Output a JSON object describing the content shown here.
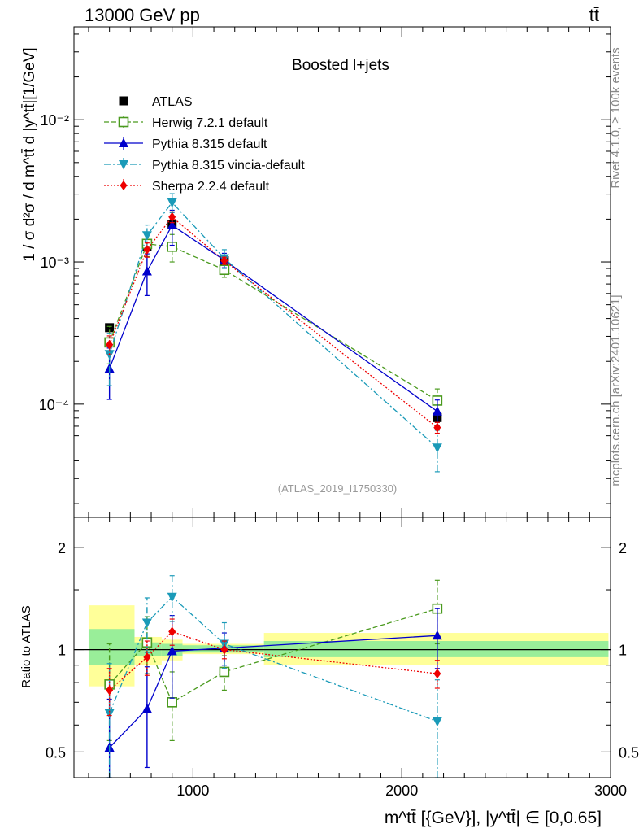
{
  "header": {
    "left": "13000 GeV pp",
    "right": "tt̄"
  },
  "side_labels": {
    "rivet": "Rivet 4.1.0, ≥ 100k events",
    "mcplots": "mcplots.cern.ch [arXiv:2401.10621]"
  },
  "colors": {
    "ATLAS": "#000000",
    "Herwig": "#4a9a1e",
    "Pythia": "#0000cc",
    "Vincia": "#1a9ab8",
    "Sherpa": "#ee0000",
    "band_inner": "#99ee99",
    "band_outer": "#ffff99"
  },
  "chart_data": [
    {
      "type": "line",
      "panel": "main",
      "title": "Boosted l+jets",
      "ylabel": "1 / σ d²σ / d m^tt̄ d |y^tt̄|[1/GeV]",
      "yscale": "log",
      "xlim": [
        430,
        3000
      ],
      "ylim": [
        1.6e-05,
        0.045
      ],
      "ytick_labels": [
        "10⁻⁴",
        "10⁻³",
        "10⁻²"
      ],
      "watermark": "(ATLAS_2019_I1750330)",
      "x": [
        600,
        780,
        900,
        1150,
        2170
      ],
      "bin_edges": [
        [
          500,
          700
        ],
        [
          700,
          850
        ],
        [
          850,
          950
        ],
        [
          950,
          1350
        ],
        [
          1350,
          3000
        ]
      ],
      "series": [
        {
          "name": "ATLAS",
          "key": "ATLAS",
          "marker": "square",
          "dash": "",
          "values": [
            0.000345,
            0.00128,
            0.00183,
            0.00102,
            8.05e-05
          ],
          "errors": [
            2e-05,
            5e-05,
            6e-05,
            4e-05,
            6e-06
          ]
        },
        {
          "name": "Herwig 7.2.1 default",
          "key": "Herwig",
          "marker": "open-square",
          "dash": "6,3",
          "values": [
            0.000272,
            0.00134,
            0.00128,
            0.00088,
            0.000106
          ],
          "errors": [
            8e-05,
            0.00025,
            0.00028,
            0.0001,
            2.2e-05
          ]
        },
        {
          "name": "Pythia 8.315 default",
          "key": "Pythia",
          "marker": "triangle-up",
          "dash": "",
          "values": [
            0.000178,
            0.00086,
            0.00181,
            0.00103,
            8.9e-05
          ],
          "errors": [
            7e-05,
            0.00028,
            0.0005,
            0.00012,
            1.8e-05
          ]
        },
        {
          "name": "Pythia 8.315 vincia-default",
          "key": "Vincia",
          "marker": "triangle-down",
          "dash": "8,3,2,3",
          "values": [
            0.000225,
            0.00154,
            0.00262,
            0.00106,
            4.95e-05
          ],
          "errors": [
            9e-05,
            0.00028,
            0.0004,
            0.00016,
            1.6e-05
          ]
        },
        {
          "name": "Sherpa 2.2.4 default",
          "key": "Sherpa",
          "marker": "diamond",
          "dash": "2,2",
          "values": [
            0.000262,
            0.00122,
            0.00207,
            0.00102,
            6.85e-05
          ],
          "errors": [
            4e-05,
            0.00014,
            0.00018,
            6e-05,
            6e-06
          ]
        }
      ]
    },
    {
      "type": "line",
      "panel": "ratio",
      "ylabel": "Ratio to ATLAS",
      "yscale": "log",
      "xlim": [
        430,
        3000
      ],
      "ylim": [
        0.42,
        2.45
      ],
      "ytick_labels": [
        "0.5",
        "1",
        "2"
      ],
      "xtick_labels": [
        "1000",
        "2000",
        "3000"
      ],
      "xlabel": "m^tt̄ [{GeV}], |y^tt̄| ∈ [0,0.65]",
      "x": [
        600,
        780,
        900,
        1150,
        2170
      ],
      "band_bins": [
        {
          "x0": 500,
          "x1": 720,
          "inner": [
            0.9,
            1.15
          ],
          "outer": [
            0.78,
            1.35
          ]
        },
        {
          "x0": 720,
          "x1": 850,
          "inner": [
            0.96,
            1.05
          ],
          "outer": [
            0.9,
            1.09
          ]
        },
        {
          "x0": 850,
          "x1": 950,
          "inner": [
            0.96,
            1.04
          ],
          "outer": [
            0.93,
            1.07
          ]
        },
        {
          "x0": 950,
          "x1": 1340,
          "inner": [
            0.98,
            1.03
          ],
          "outer": [
            0.97,
            1.04
          ]
        },
        {
          "x0": 1340,
          "x1": 2990,
          "inner": [
            0.95,
            1.06
          ],
          "outer": [
            0.9,
            1.12
          ]
        }
      ],
      "series": [
        {
          "name": "Herwig 7.2.1 default",
          "key": "Herwig",
          "marker": "open-square",
          "dash": "6,3",
          "values": [
            0.79,
            1.05,
            0.7,
            0.86,
            1.32
          ],
          "errors": [
            0.25,
            0.2,
            0.16,
            0.1,
            0.28
          ]
        },
        {
          "name": "Pythia 8.315 default",
          "key": "Pythia",
          "marker": "triangle-up",
          "dash": "",
          "values": [
            0.515,
            0.67,
            0.99,
            1.01,
            1.1
          ],
          "errors": [
            0.2,
            0.22,
            0.27,
            0.11,
            0.22
          ]
        },
        {
          "name": "Pythia 8.315 vincia-default",
          "key": "Vincia",
          "marker": "triangle-down",
          "dash": "8,3,2,3",
          "values": [
            0.65,
            1.2,
            1.43,
            1.04,
            0.615
          ],
          "errors": [
            0.26,
            0.22,
            0.22,
            0.16,
            0.2
          ]
        },
        {
          "name": "Sherpa 2.2.4 default",
          "key": "Sherpa",
          "marker": "diamond",
          "dash": "2,2",
          "values": [
            0.76,
            0.95,
            1.13,
            1.0,
            0.85
          ],
          "errors": [
            0.12,
            0.11,
            0.1,
            0.06,
            0.08
          ]
        }
      ]
    }
  ]
}
